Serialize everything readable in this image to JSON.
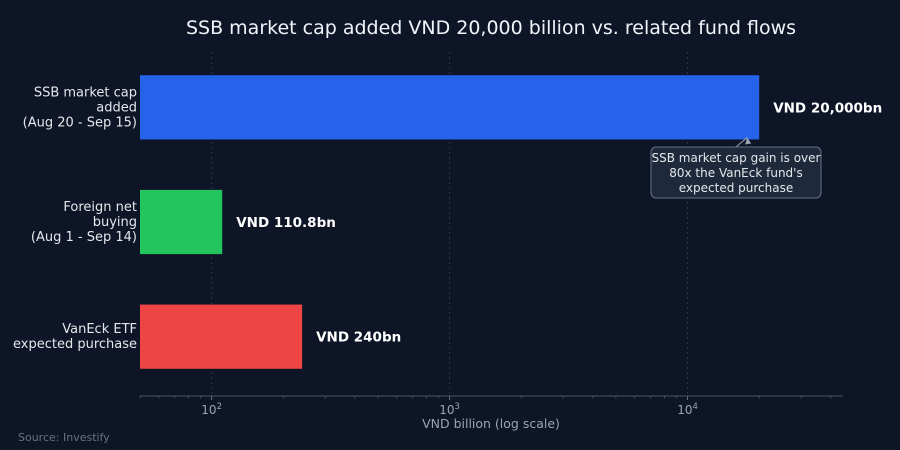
{
  "chart_data": {
    "type": "bar",
    "orientation": "horizontal",
    "title": "SSB market cap added VND 20,000 billion vs. related fund flows",
    "xlabel": "VND billion (log scale)",
    "xscale": "log",
    "xlim": [
      50,
      45000
    ],
    "x_ticks": [
      {
        "value": 100,
        "base": "10",
        "exp": "2"
      },
      {
        "value": 1000,
        "base": "10",
        "exp": "3"
      },
      {
        "value": 10000,
        "base": "10",
        "exp": "4"
      }
    ],
    "grid": true,
    "bars": [
      {
        "category_lines": [
          "SSB market cap",
          "added",
          "(Aug 20 - Sep 15)"
        ],
        "value": 20000,
        "value_label": "VND 20,000bn",
        "color": "#2563eb"
      },
      {
        "category_lines": [
          "Foreign net",
          "buying",
          "(Aug 1 - Sep 14)"
        ],
        "value": 110.8,
        "value_label": "VND 110.8bn",
        "color": "#22c55e"
      },
      {
        "category_lines": [
          "VanEck ETF",
          "expected purchase"
        ],
        "value": 240,
        "value_label": "VND 240bn",
        "color": "#ef4444"
      }
    ],
    "annotation": {
      "lines": [
        "SSB market cap gain is over",
        "80x the VanEck fund's",
        "expected purchase"
      ],
      "points_to_value": 20000
    },
    "source": "Source: Investify"
  }
}
